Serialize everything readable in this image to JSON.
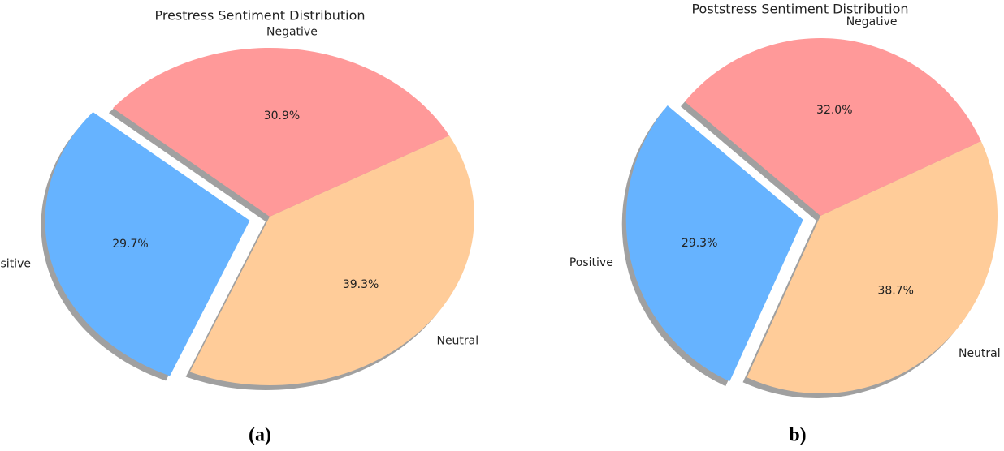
{
  "chart_data": [
    {
      "type": "pie",
      "title": "Prestress Sentiment Distribution",
      "caption": "(a)",
      "categories": [
        "Positive",
        "Neutral",
        "Negative"
      ],
      "values": [
        29.7,
        39.3,
        30.9
      ],
      "value_labels": [
        "29.7%",
        "39.3%",
        "30.9%"
      ],
      "colors": [
        "#66b3ff",
        "#ffcc99",
        "#ff9999"
      ],
      "explode": [
        0.1,
        0,
        0
      ],
      "startangle": 140,
      "shadow": true
    },
    {
      "type": "pie",
      "title": "Poststress Sentiment Distribution",
      "caption": "b)",
      "categories": [
        "Positive",
        "Neutral",
        "Negative"
      ],
      "values": [
        29.3,
        38.7,
        32.0
      ],
      "value_labels": [
        "29.3%",
        "38.7%",
        "32.0%"
      ],
      "colors": [
        "#66b3ff",
        "#ffcc99",
        "#ff9999"
      ],
      "explode": [
        0.1,
        0,
        0
      ],
      "startangle": 140,
      "shadow": true
    }
  ]
}
